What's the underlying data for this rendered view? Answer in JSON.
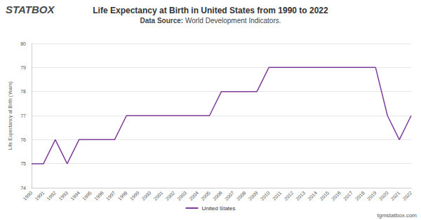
{
  "chart_data": {
    "type": "line",
    "title": "Life Expectancy at Birth in United States from 1990 to 2022",
    "subtitle": "Data Source: World Development Indicators.",
    "y_label": "Life Expectancy at Birth (Years)",
    "annotations": [
      "STATBOX",
      "tgmstatbox.com"
    ],
    "categories": [
      "1990",
      "1991",
      "1992",
      "1993",
      "1994",
      "1995",
      "1996",
      "1997",
      "1998",
      "1999",
      "2000",
      "2001",
      "2002",
      "2003",
      "2004",
      "2005",
      "2006",
      "2007",
      "2008",
      "2009",
      "2010",
      "2011",
      "2012",
      "2013",
      "2014",
      "2015",
      "2016",
      "2017",
      "2018",
      "2019",
      "2020",
      "2021",
      "2022"
    ],
    "series": [
      {
        "name": "United States",
        "color": "#7d3c98",
        "values": [
          75,
          75,
          76,
          75,
          76,
          76,
          76,
          76,
          77,
          77,
          77,
          77,
          77,
          77,
          77,
          77,
          78,
          78,
          78,
          78,
          79,
          79,
          79,
          79,
          79,
          79,
          79,
          79,
          79,
          79,
          77,
          76,
          77
        ]
      }
    ],
    "ylim": [
      74,
      80
    ],
    "yticks": [
      74,
      75,
      76,
      77,
      78,
      79,
      80
    ],
    "grid": true,
    "legend": "bottom"
  }
}
